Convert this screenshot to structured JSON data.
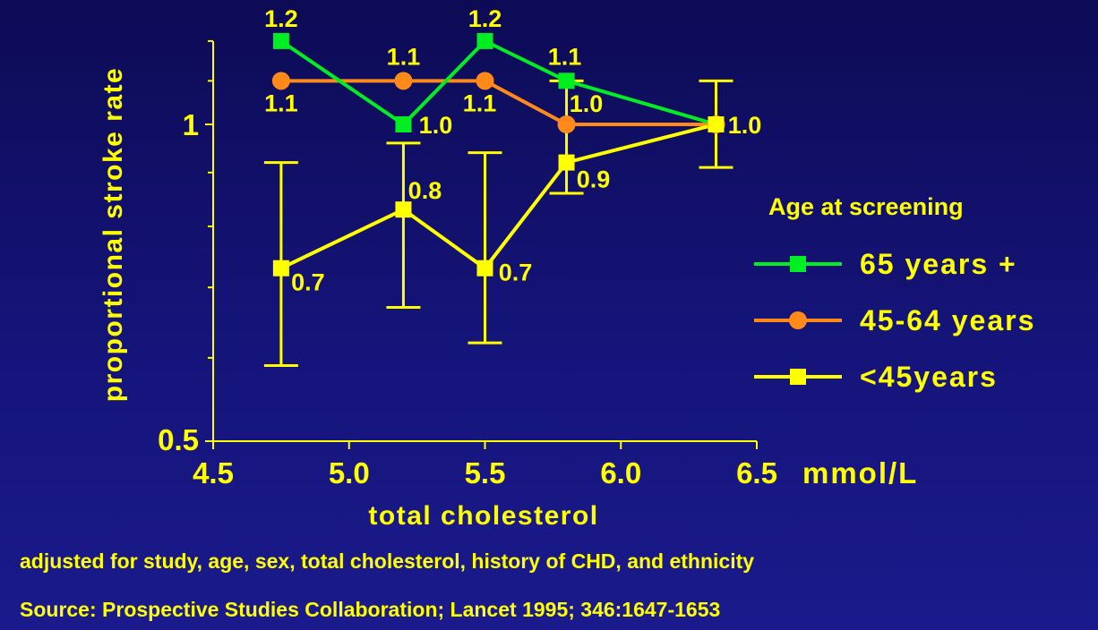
{
  "chart_data": {
    "type": "line",
    "ylabel": "proportional stroke rate",
    "xlabel": "total cholesterol",
    "x_unit": "mmol/L",
    "x_range": [
      4.5,
      6.5
    ],
    "x_ticks": [
      "4.5",
      "5.0",
      "5.5",
      "6.0",
      "6.5"
    ],
    "y_scale": "log",
    "y_range": [
      0.5,
      1.25
    ],
    "y_ticks": [
      "0.5",
      "1"
    ],
    "legend_title": "Age at screening",
    "legend_position": "right",
    "series": [
      {
        "name": "65 years +",
        "color": "#00ee22",
        "marker": "square",
        "points": [
          {
            "x": 4.75,
            "y": 1.2,
            "label": "1.2"
          },
          {
            "x": 5.2,
            "y": 1.0,
            "label": "1.0"
          },
          {
            "x": 5.5,
            "y": 1.2,
            "label": "1.2"
          },
          {
            "x": 5.8,
            "y": 1.1,
            "label": "1.1"
          },
          {
            "x": 6.35,
            "y": 1.0,
            "label": ""
          }
        ]
      },
      {
        "name": "45-64 years",
        "color": "#ff8a1a",
        "marker": "circle",
        "points": [
          {
            "x": 4.75,
            "y": 1.1,
            "label": "1.1"
          },
          {
            "x": 5.2,
            "y": 1.1,
            "label": "1.1"
          },
          {
            "x": 5.5,
            "y": 1.1,
            "label": "1.1"
          },
          {
            "x": 5.8,
            "y": 1.0,
            "label": "1.0"
          },
          {
            "x": 6.35,
            "y": 1.0,
            "label": ""
          }
        ]
      },
      {
        "name": "<45years",
        "color": "#ffff00",
        "marker": "square",
        "points": [
          {
            "x": 4.75,
            "y": 0.73,
            "label": "0.7",
            "ci": [
              0.59,
              0.92
            ]
          },
          {
            "x": 5.2,
            "y": 0.83,
            "label": "0.8",
            "ci": [
              0.67,
              0.96
            ]
          },
          {
            "x": 5.5,
            "y": 0.73,
            "label": "0.7",
            "ci": [
              0.62,
              0.94
            ]
          },
          {
            "x": 5.8,
            "y": 0.92,
            "label": "0.9",
            "ci": [
              0.86,
              1.1
            ]
          },
          {
            "x": 6.35,
            "y": 1.0,
            "label": "1.0",
            "ci": [
              0.91,
              1.1
            ]
          }
        ]
      }
    ]
  },
  "footnote": "adjusted for study, age, sex, total cholesterol, history of CHD, and ethnicity",
  "source": "Source: Prospective Studies Collaboration; Lancet 1995; 346:1647-1653"
}
